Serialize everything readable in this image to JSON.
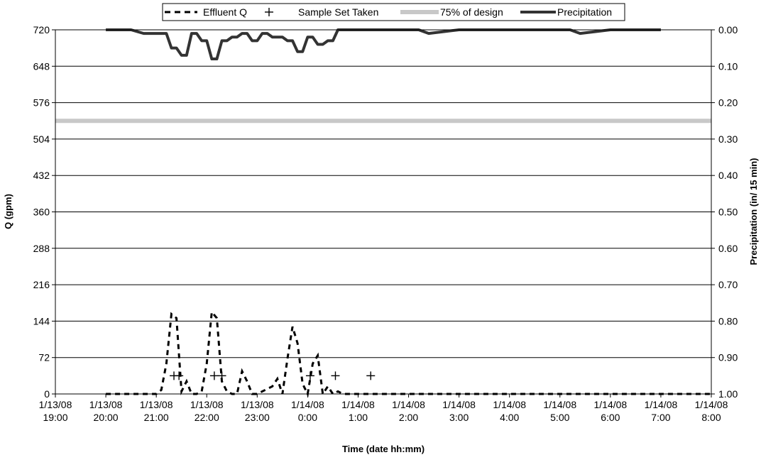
{
  "chart_data": {
    "type": "line",
    "xlabel": "Time (date hh:mm)",
    "ylabel": "Q (gpm)",
    "y2label": "Precipitation (in/ 15 min)",
    "ylim": [
      0,
      720
    ],
    "y2lim": [
      0,
      1
    ],
    "y2_inverted": true,
    "x_range_hours": [
      0,
      13
    ],
    "x_ticks": [
      {
        "hour": 0,
        "date": "1/13/08",
        "time": "19:00"
      },
      {
        "hour": 1,
        "date": "1/13/08",
        "time": "20:00"
      },
      {
        "hour": 2,
        "date": "1/13/08",
        "time": "21:00"
      },
      {
        "hour": 3,
        "date": "1/13/08",
        "time": "22:00"
      },
      {
        "hour": 4,
        "date": "1/13/08",
        "time": "23:00"
      },
      {
        "hour": 5,
        "date": "1/14/08",
        "time": "0:00"
      },
      {
        "hour": 6,
        "date": "1/14/08",
        "time": "1:00"
      },
      {
        "hour": 7,
        "date": "1/14/08",
        "time": "2:00"
      },
      {
        "hour": 8,
        "date": "1/14/08",
        "time": "3:00"
      },
      {
        "hour": 9,
        "date": "1/14/08",
        "time": "4:00"
      },
      {
        "hour": 10,
        "date": "1/14/08",
        "time": "5:00"
      },
      {
        "hour": 11,
        "date": "1/14/08",
        "time": "6:00"
      },
      {
        "hour": 12,
        "date": "1/14/08",
        "time": "7:00"
      },
      {
        "hour": 13,
        "date": "1/14/08",
        "time": "8:00"
      }
    ],
    "y_ticks": [
      "0",
      "72",
      "144",
      "216",
      "288",
      "360",
      "432",
      "504",
      "576",
      "648",
      "720"
    ],
    "y2_ticks": [
      "1.00",
      "0.90",
      "0.80",
      "0.70",
      "0.60",
      "0.50",
      "0.40",
      "0.30",
      "0.20",
      "0.10",
      "0.00"
    ],
    "legend": {
      "placement": "top-center",
      "items": [
        {
          "key": "effluent",
          "label": "Effluent Q"
        },
        {
          "key": "samples",
          "label": "Sample Set Taken"
        },
        {
          "key": "design",
          "label": "75% of design"
        },
        {
          "key": "precip",
          "label": "Precipitation"
        }
      ]
    },
    "colors": {
      "effluent": "#000000",
      "samples": "#000000",
      "design": "#c8c8c8",
      "precip": "#333333",
      "grid": "#000000"
    },
    "series": [
      {
        "key": "effluent",
        "name": "Effluent Q",
        "axis": "left",
        "x_hours": [
          1.0,
          1.25,
          1.5,
          1.75,
          2.0,
          2.1,
          2.2,
          2.3,
          2.4,
          2.5,
          2.6,
          2.7,
          2.8,
          2.9,
          3.0,
          3.1,
          3.2,
          3.3,
          3.4,
          3.5,
          3.6,
          3.7,
          3.8,
          3.9,
          4.0,
          4.1,
          4.2,
          4.3,
          4.4,
          4.5,
          4.6,
          4.7,
          4.8,
          4.9,
          5.0,
          5.1,
          5.2,
          5.3,
          5.4,
          5.5,
          5.6,
          5.7,
          5.8,
          5.9,
          6.0,
          6.1,
          6.2,
          6.3,
          6.5,
          7.0,
          8.0,
          9.0,
          10.0,
          11.0,
          12.0,
          13.0
        ],
        "values": [
          0,
          0,
          0,
          0,
          0,
          8,
          60,
          158,
          150,
          5,
          25,
          0,
          0,
          5,
          60,
          162,
          150,
          25,
          5,
          0,
          0,
          45,
          25,
          0,
          0,
          5,
          10,
          15,
          30,
          0,
          70,
          133,
          100,
          20,
          0,
          60,
          76,
          0,
          15,
          0,
          5,
          0,
          0,
          0,
          0,
          0,
          0,
          0,
          0,
          0,
          0,
          0,
          0,
          0,
          0,
          0
        ]
      },
      {
        "key": "samples",
        "name": "Sample Set Taken",
        "axis": "left",
        "x_hours": [
          2.35,
          2.45,
          3.15,
          3.3,
          5.05,
          5.55,
          6.25
        ],
        "values": [
          36,
          36,
          36,
          36,
          36,
          36,
          36
        ]
      },
      {
        "key": "design",
        "name": "75% of design",
        "axis": "left",
        "x_hours": [
          0,
          13
        ],
        "values": [
          540,
          540
        ]
      },
      {
        "key": "precip",
        "name": "Precipitation",
        "axis": "right",
        "x_hours": [
          1.0,
          1.25,
          1.5,
          1.75,
          2.0,
          2.1,
          2.2,
          2.3,
          2.4,
          2.5,
          2.6,
          2.7,
          2.8,
          2.9,
          3.0,
          3.1,
          3.2,
          3.3,
          3.4,
          3.5,
          3.6,
          3.7,
          3.8,
          3.9,
          4.0,
          4.1,
          4.2,
          4.3,
          4.4,
          4.5,
          4.6,
          4.7,
          4.8,
          4.9,
          5.0,
          5.1,
          5.2,
          5.3,
          5.4,
          5.5,
          5.6,
          5.7,
          5.8,
          5.9,
          6.0,
          6.1,
          6.2,
          6.3,
          6.5,
          7.0,
          7.2,
          7.4,
          8.0,
          9.0,
          10.0,
          10.2,
          10.4,
          11.0,
          12.0
        ],
        "values": [
          0,
          0,
          0,
          0.01,
          0.01,
          0.01,
          0.01,
          0.05,
          0.05,
          0.07,
          0.07,
          0.01,
          0.01,
          0.03,
          0.03,
          0.08,
          0.08,
          0.03,
          0.03,
          0.02,
          0.02,
          0.01,
          0.01,
          0.03,
          0.03,
          0.01,
          0.01,
          0.02,
          0.02,
          0.02,
          0.03,
          0.03,
          0.06,
          0.06,
          0.02,
          0.02,
          0.04,
          0.04,
          0.03,
          0.03,
          0.0,
          0.0,
          0.0,
          0.0,
          0.0,
          0.0,
          0.0,
          0.0,
          0.0,
          0.0,
          0.0,
          0.01,
          0.0,
          0.0,
          0.0,
          0.0,
          0.01,
          0.0,
          0.0
        ]
      }
    ]
  }
}
